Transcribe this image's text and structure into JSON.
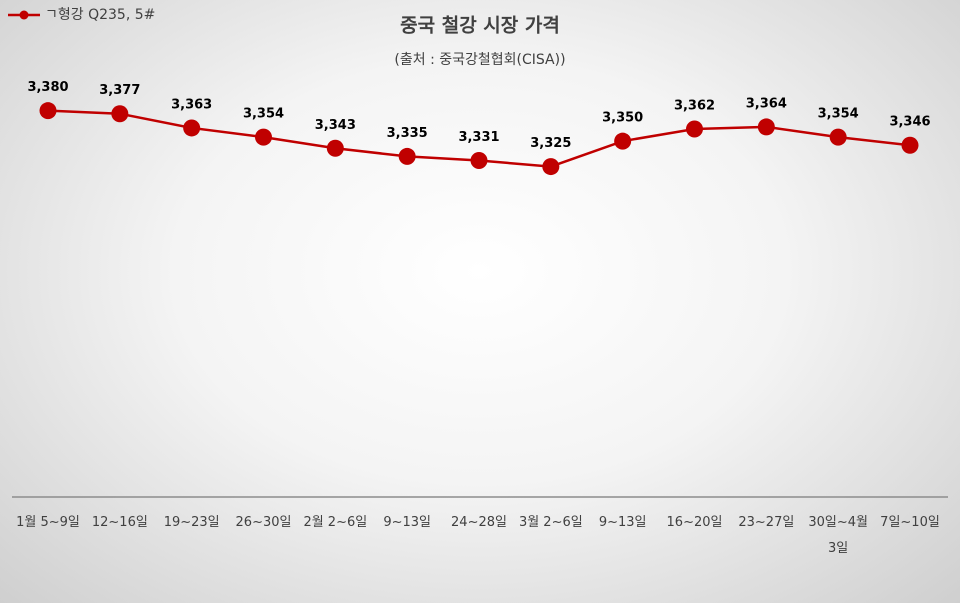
{
  "chart_data": {
    "type": "line",
    "title": "중국 철강 시장 가격",
    "subtitle": "(출처 : 중국강철협회(CISA))",
    "categories": [
      "1월 5~9일",
      "12~16일",
      "19~23일",
      "26~30일",
      "2월 2~6일",
      "9~13일",
      "24~28일",
      "3월 2~6일",
      "9~13일",
      "16~20일",
      "23~27일",
      "30일~4월 3일",
      "7일~10일"
    ],
    "series": [
      {
        "name": "ㄱ형강 Q235, 5#",
        "color": "#c00000",
        "values": [
          3380,
          3377,
          3363,
          3354,
          3343,
          3335,
          3331,
          3325,
          3350,
          3362,
          3364,
          3354,
          3346
        ],
        "value_labels": [
          "3,380",
          "3,377",
          "3,363",
          "3,354",
          "3,343",
          "3,335",
          "3,331",
          "3,325",
          "3,350",
          "3,362",
          "3,364",
          "3,354",
          "3,346"
        ]
      }
    ],
    "ylim": [
      3000,
      3420
    ],
    "legend": "top-left"
  }
}
